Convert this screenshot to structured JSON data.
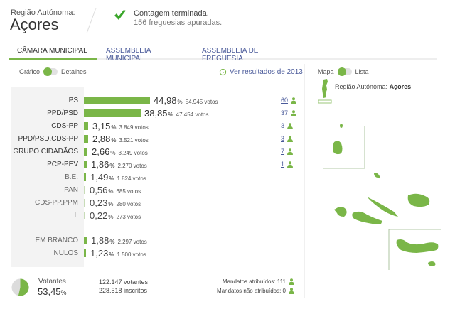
{
  "header": {
    "region_label": "Região Autónoma:",
    "region_name": "Açores",
    "status_icon": "checkmark-icon",
    "status_title": "Contagem terminada.",
    "status_sub": "156 freguesias apuradas."
  },
  "tabs": [
    {
      "label": "CÂMARA MUNICIPAL",
      "active": true
    },
    {
      "label": "ASSEMBLEIA MUNICIPAL",
      "active": false
    },
    {
      "label": "ASSEMBLEIA DE FREGUESIA",
      "active": false
    }
  ],
  "view_toggle": {
    "left": "Gráfico",
    "right": "Detalhes"
  },
  "previous_results": {
    "icon": "history-icon",
    "label": "Ver resultados de 2013"
  },
  "map_toggle": {
    "left": "Mapa",
    "right": "Lista"
  },
  "map": {
    "region_prefix": "Região Autónoma: ",
    "region_name": "Açores"
  },
  "colors": {
    "accent": "#7ab648",
    "link": "#4a5a9a",
    "panel": "#f3f3f3"
  },
  "results": [
    {
      "party": "PS",
      "pct": "44,98",
      "votes": "54.945 votos",
      "seats": "60",
      "bar": 93
    },
    {
      "party": "PPD/PSD",
      "pct": "38,85",
      "votes": "47.454 votos",
      "seats": "37",
      "bar": 80
    },
    {
      "party": "CDS-PP",
      "pct": "3,15",
      "votes": "3.849 votos",
      "seats": "3",
      "bar": 6
    },
    {
      "party": "PPD/PSD.CDS-PP",
      "pct": "2,88",
      "votes": "3.521 votos",
      "seats": "3",
      "bar": 6
    },
    {
      "party": "GRUPO CIDADÃOS",
      "pct": "2,66",
      "votes": "3.249 votos",
      "seats": "7",
      "bar": 5
    },
    {
      "party": "PCP-PEV",
      "pct": "1,86",
      "votes": "2.270 votos",
      "seats": "1",
      "bar": 4
    },
    {
      "party": "B.E.",
      "pct": "1,49",
      "votes": "1.824 votos",
      "seats": null,
      "bar": 3
    },
    {
      "party": "PAN",
      "pct": "0,56",
      "votes": "685 votos",
      "seats": null,
      "bar": 1
    },
    {
      "party": "CDS-PP.PPM",
      "pct": "0,23",
      "votes": "280 votos",
      "seats": null,
      "bar": 1
    },
    {
      "party": "L",
      "pct": "0,22",
      "votes": "273 votos",
      "seats": null,
      "bar": 1
    },
    {
      "party": "EM BRANCO",
      "pct": "1,88",
      "votes": "2.297 votos",
      "seats": null,
      "bar": 4
    },
    {
      "party": "NULOS",
      "pct": "1,23",
      "votes": "1.500 votos",
      "seats": null,
      "bar": 3
    }
  ],
  "footer": {
    "turnout_label": "Votantes",
    "turnout_pct": "53,45",
    "pct_sign": "%",
    "voters": "122.147 votantes",
    "registered": "228.518 inscritos",
    "seats_assigned": "Mandatos atribuídos: 111",
    "seats_unassigned": "Mandatos não atribuídos: 0"
  }
}
